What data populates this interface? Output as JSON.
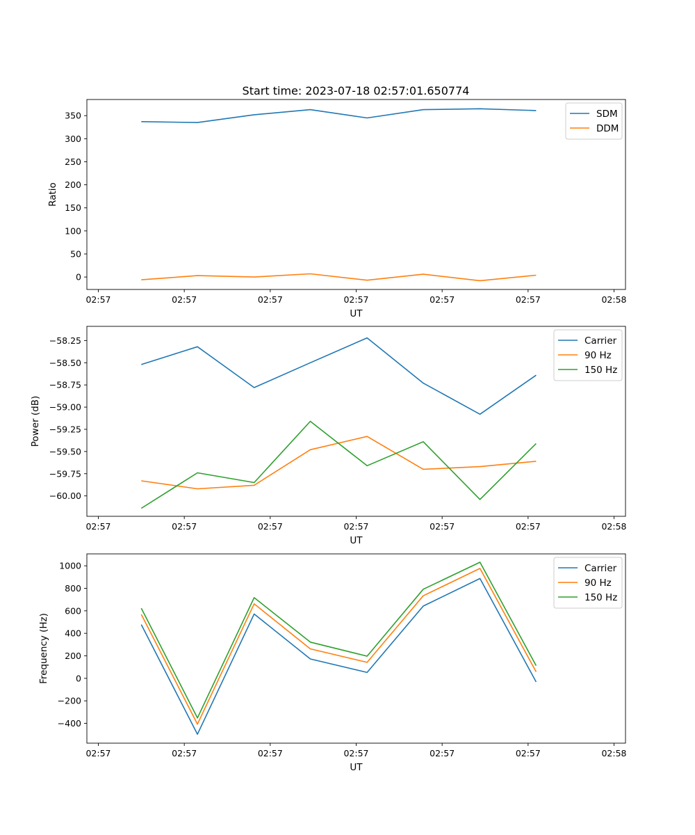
{
  "figure": {
    "title": "Start time: 2023-07-18 02:57:01.650774"
  },
  "chart_data": [
    {
      "type": "line",
      "xlabel": "UT",
      "ylabel": "Ratio",
      "xlim": [
        0,
        9.4
      ],
      "ylim": [
        -27,
        385
      ],
      "x_ticks": [
        0.2,
        1.7,
        3.2,
        4.7,
        6.2,
        7.7,
        9.2
      ],
      "x_tick_labels": [
        "02:57",
        "02:57",
        "02:57",
        "02:57",
        "02:57",
        "02:57",
        "02:58"
      ],
      "y_ticks": [
        0,
        50,
        100,
        150,
        200,
        250,
        300,
        350
      ],
      "y_tick_labels": [
        "0",
        "50",
        "100",
        "150",
        "200",
        "250",
        "300",
        "350"
      ],
      "x": [
        0.95,
        1.93,
        2.92,
        3.9,
        4.89,
        5.87,
        6.86,
        7.84
      ],
      "series": [
        {
          "name": "SDM",
          "color": "#1f77b4",
          "values": [
            337,
            335,
            352,
            363,
            345,
            363,
            365,
            361
          ]
        },
        {
          "name": "DDM",
          "color": "#ff7f0e",
          "values": [
            -6,
            3,
            0,
            7,
            -7,
            6,
            -8,
            4
          ]
        }
      ],
      "legend": "top-right"
    },
    {
      "type": "line",
      "xlabel": "UT",
      "ylabel": "Power (dB)",
      "xlim": [
        0,
        9.4
      ],
      "ylim": [
        -60.23,
        -58.09
      ],
      "x_ticks": [
        0.2,
        1.7,
        3.2,
        4.7,
        6.2,
        7.7,
        9.2
      ],
      "x_tick_labels": [
        "02:57",
        "02:57",
        "02:57",
        "02:57",
        "02:57",
        "02:57",
        "02:58"
      ],
      "y_ticks": [
        -60.0,
        -59.75,
        -59.5,
        -59.25,
        -59.0,
        -58.75,
        -58.5,
        -58.25
      ],
      "y_tick_labels": [
        "−60.00",
        "−59.75",
        "−59.50",
        "−59.25",
        "−59.00",
        "−58.75",
        "−58.50",
        "−58.25"
      ],
      "x": [
        0.95,
        1.93,
        2.92,
        3.9,
        4.89,
        5.87,
        6.86,
        7.84
      ],
      "series": [
        {
          "name": "Carrier",
          "color": "#1f77b4",
          "values": [
            -58.52,
            -58.32,
            -58.78,
            -58.5,
            -58.22,
            -58.73,
            -59.08,
            -58.64
          ]
        },
        {
          "name": "90 Hz",
          "color": "#ff7f0e",
          "values": [
            -59.83,
            -59.92,
            -59.88,
            -59.48,
            -59.33,
            -59.7,
            -59.67,
            -59.61
          ]
        },
        {
          "name": "150 Hz",
          "color": "#2ca02c",
          "values": [
            -60.14,
            -59.74,
            -59.85,
            -59.16,
            -59.66,
            -59.39,
            -60.04,
            -59.41
          ]
        }
      ],
      "legend": "top-right"
    },
    {
      "type": "line",
      "xlabel": "UT",
      "ylabel": "Frequency (Hz)",
      "xlim": [
        0,
        9.4
      ],
      "ylim": [
        -576,
        1106
      ],
      "x_ticks": [
        0.2,
        1.7,
        3.2,
        4.7,
        6.2,
        7.7,
        9.2
      ],
      "x_tick_labels": [
        "02:57",
        "02:57",
        "02:57",
        "02:57",
        "02:57",
        "02:57",
        "02:58"
      ],
      "y_ticks": [
        -400,
        -200,
        0,
        200,
        400,
        600,
        800,
        1000
      ],
      "y_tick_labels": [
        "−400",
        "−200",
        "0",
        "200",
        "400",
        "600",
        "800",
        "1000"
      ],
      "x": [
        0.95,
        1.93,
        2.92,
        3.9,
        4.89,
        5.87,
        6.86,
        7.84
      ],
      "series": [
        {
          "name": "Carrier",
          "color": "#1f77b4",
          "values": [
            478,
            -497,
            572,
            172,
            52,
            642,
            887,
            -32
          ]
        },
        {
          "name": "90 Hz",
          "color": "#ff7f0e",
          "values": [
            568,
            -407,
            662,
            262,
            142,
            734,
            977,
            58
          ]
        },
        {
          "name": "150 Hz",
          "color": "#2ca02c",
          "values": [
            623,
            -352,
            717,
            322,
            197,
            792,
            1032,
            113
          ]
        }
      ],
      "legend": "top-right"
    }
  ]
}
